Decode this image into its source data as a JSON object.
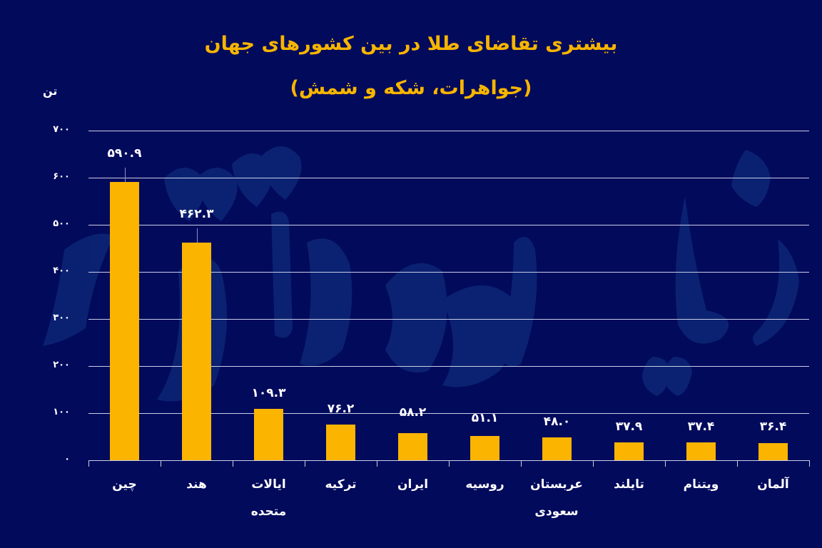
{
  "title": {
    "line1": "بیشتری تقاضای طلا در بین کشورهای جهان",
    "line2": "(جواهرات، شکه و شمش)"
  },
  "colors": {
    "background": "#020a5c",
    "bar": "#fbb400",
    "title": "#f7b500",
    "gridline": "#c9cfe6",
    "text": "#ffffff",
    "watermark": "#0e2a7a"
  },
  "axis": {
    "unit_label": "تن",
    "y_ticks": [
      "۰",
      "۱۰۰",
      "۲۰۰",
      "۳۰۰",
      "۴۰۰",
      "۵۰۰",
      "۶۰۰",
      "۷۰۰"
    ]
  },
  "bars": [
    {
      "label": "چین",
      "value_label": "۵۹۰.۹"
    },
    {
      "label": "هند",
      "value_label": "۴۶۲.۳"
    },
    {
      "label": "ایالات متحده",
      "value_label": "۱۰۹.۳"
    },
    {
      "label": "ترکیه",
      "value_label": "۷۶.۲"
    },
    {
      "label": "ایران",
      "value_label": "۵۸.۲"
    },
    {
      "label": "روسیه",
      "value_label": "۵۱.۱"
    },
    {
      "label": "عربستان سعودی",
      "value_label": "۴۸.۰"
    },
    {
      "label": "تایلند",
      "value_label": "۳۷.۹"
    },
    {
      "label": "ویتنام",
      "value_label": "۳۷.۴"
    },
    {
      "label": "آلمان",
      "value_label": "۳۶.۴"
    }
  ],
  "chart_data": {
    "type": "bar",
    "title": "بیشتری تقاضای طلا در بین کشورهای جهان (جواهرات، شکه و شمش)",
    "xlabel": "",
    "ylabel": "تن",
    "categories": [
      "چین",
      "هند",
      "ایالات متحده",
      "ترکیه",
      "ایران",
      "روسیه",
      "عربستان سعودی",
      "تایلند",
      "ویتنام",
      "آلمان"
    ],
    "values": [
      590.9,
      462.3,
      109.3,
      76.2,
      58.2,
      51.1,
      48.0,
      37.9,
      37.4,
      36.4
    ],
    "ylim": [
      0,
      700
    ],
    "yticks": [
      0,
      100,
      200,
      300,
      400,
      500,
      600,
      700
    ],
    "grid": true,
    "legend": null,
    "data_labels": true
  }
}
